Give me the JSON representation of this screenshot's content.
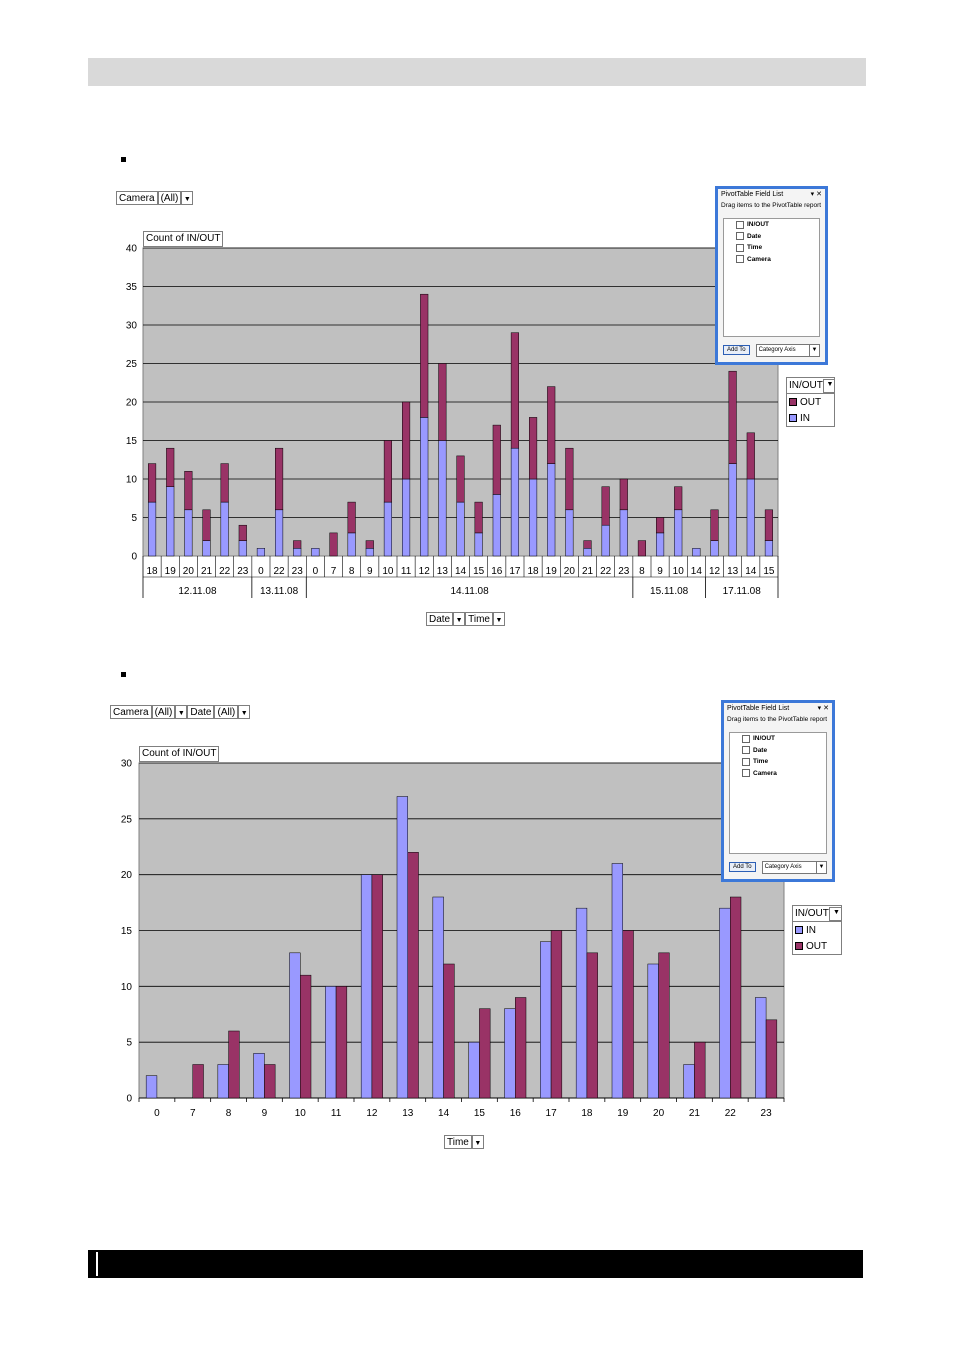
{
  "colors": {
    "in": "#9999ff",
    "out": "#993366",
    "plot_bg": "#c0c0c0",
    "panel_border": "#3c78d8"
  },
  "chart1": {
    "page_field": {
      "name": "Camera",
      "value": "(All)"
    },
    "data_field": "Count of IN/OUT",
    "row_fields": [
      "Date",
      "Time"
    ],
    "legend": {
      "title": "IN/OUT",
      "items": [
        "OUT",
        "IN"
      ]
    },
    "field_list": {
      "title": "PivotTable Field List",
      "instruction": "Drag items to the PivotTable report",
      "items": [
        "IN/OUT",
        "Date",
        "Time",
        "Camera"
      ],
      "add_button": "Add To",
      "area": "Category Axis"
    }
  },
  "chart2": {
    "page_fields": [
      {
        "name": "Camera",
        "value": "(All)"
      },
      {
        "name": "Date",
        "value": "(All)"
      }
    ],
    "data_field": "Count of IN/OUT",
    "row_fields": [
      "Time"
    ],
    "legend": {
      "title": "IN/OUT",
      "items": [
        "IN",
        "OUT"
      ]
    },
    "field_list": {
      "title": "PivotTable Field List",
      "instruction": "Drag items to the PivotTable report",
      "items": [
        "IN/OUT",
        "Date",
        "Time",
        "Camera"
      ],
      "add_button": "Add To",
      "area": "Category Axis"
    }
  },
  "chart_data": [
    {
      "type": "bar",
      "stacked": true,
      "ylim": [
        0,
        40
      ],
      "yticks": [
        0,
        5,
        10,
        15,
        20,
        25,
        30,
        35,
        40
      ],
      "grid": true,
      "legend_position": "right",
      "groups": [
        {
          "label": "12.11.08",
          "categories": [
            "18",
            "19",
            "20",
            "21",
            "22",
            "23"
          ]
        },
        {
          "label": "13.11.08",
          "categories": [
            "0",
            "22",
            "23"
          ]
        },
        {
          "label": "14.11.08",
          "categories": [
            "0",
            "7",
            "8",
            "9",
            "10",
            "11",
            "12",
            "13",
            "14",
            "15",
            "16",
            "17",
            "18",
            "19",
            "20",
            "21",
            "22",
            "23"
          ]
        },
        {
          "label": "15.11.08",
          "categories": [
            "8",
            "9",
            "10",
            "14"
          ]
        },
        {
          "label": "17.11.08",
          "categories": [
            "12",
            "13",
            "14",
            "15"
          ]
        }
      ],
      "series": [
        {
          "name": "IN",
          "values": [
            7,
            9,
            6,
            2,
            7,
            2,
            1,
            6,
            1,
            1,
            0,
            3,
            1,
            7,
            10,
            18,
            15,
            7,
            3,
            8,
            14,
            10,
            12,
            6,
            1,
            4,
            6,
            0,
            3,
            6,
            1,
            2,
            12,
            10,
            2
          ]
        },
        {
          "name": "OUT",
          "values": [
            5,
            5,
            5,
            4,
            5,
            2,
            0,
            8,
            1,
            0,
            3,
            4,
            1,
            8,
            10,
            16,
            10,
            6,
            4,
            9,
            15,
            8,
            10,
            8,
            1,
            5,
            4,
            2,
            2,
            3,
            0,
            4,
            12,
            6,
            4
          ]
        }
      ]
    },
    {
      "type": "bar",
      "stacked": false,
      "ylim": [
        0,
        30
      ],
      "yticks": [
        0,
        5,
        10,
        15,
        20,
        25,
        30
      ],
      "grid": true,
      "legend_position": "right",
      "categories": [
        "0",
        "7",
        "8",
        "9",
        "10",
        "11",
        "12",
        "13",
        "14",
        "15",
        "16",
        "17",
        "18",
        "19",
        "20",
        "21",
        "22",
        "23"
      ],
      "series": [
        {
          "name": "IN",
          "values": [
            2,
            0,
            3,
            4,
            13,
            10,
            20,
            27,
            18,
            5,
            8,
            14,
            17,
            21,
            12,
            3,
            17,
            9
          ]
        },
        {
          "name": "OUT",
          "values": [
            0,
            3,
            6,
            3,
            11,
            10,
            20,
            22,
            12,
            8,
            9,
            15,
            13,
            15,
            13,
            5,
            18,
            7
          ]
        }
      ]
    }
  ]
}
